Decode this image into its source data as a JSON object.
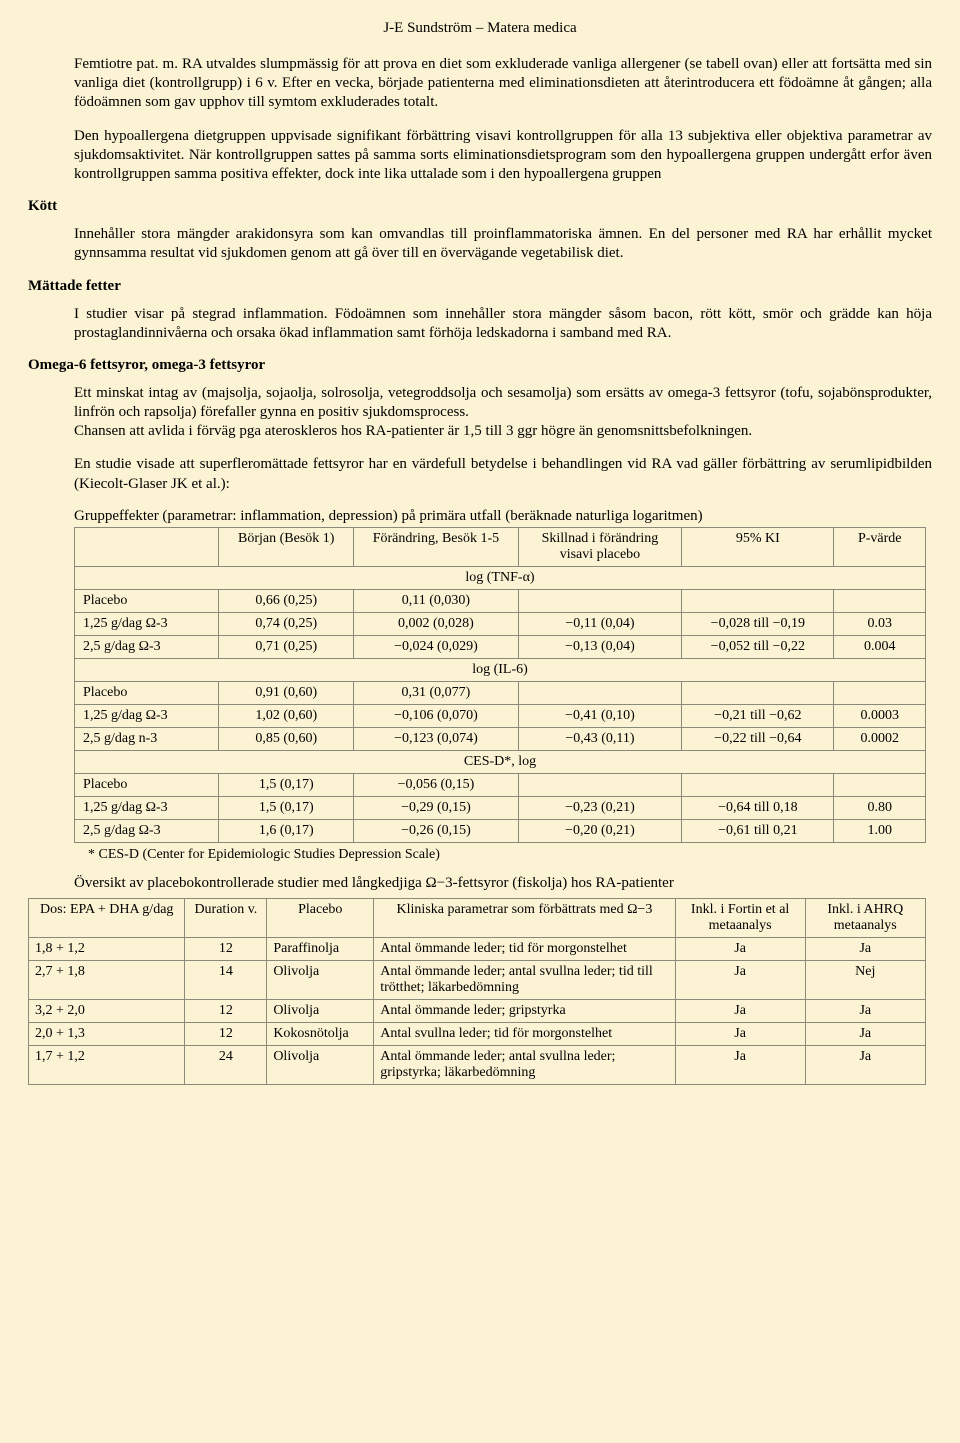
{
  "header": "J-E Sundström – Matera medica",
  "intro": {
    "p1": "Femtiotre pat. m. RA utvaldes slumpmässig för att prova en diet som exkluderade vanliga allergener (se tabell ovan) eller att fortsätta med sin vanliga diet (kontrollgrupp) i 6 v. Efter en vecka, började patienterna med eliminationsdieten att återintroducera ett födoämne åt gången; alla födoämnen som gav upphov till symtom exkluderades totalt.",
    "p2": "Den hypoallergena dietgruppen uppvisade signifikant förbättring visavi kontrollgruppen för alla 13 subjektiva eller objektiva parametrar av sjukdomsaktivitet. När kontrollgruppen sattes på samma sorts eliminations­dietsprogram som den hypoallergena gruppen undergått erfor även kontrollgruppen samma positiva effekter, dock inte lika uttalade som i den hypoallergena gruppen"
  },
  "kott": {
    "heading": "Kött",
    "p1": "Innehåller stora mängder arakidonsyra som kan omvandlas till proinflammatoriska ämnen. En del personer med RA har erhållit mycket gynnsamma resultat vid sjukdomen genom att gå över till en övervägande vegetabilisk diet."
  },
  "mattade": {
    "heading": "Mättade fetter",
    "p1": "I studier visar på stegrad inflammation. Födoämnen som innehåller stora mängder såsom bacon, rött kött, smör och grädde kan höja prostaglandinnivåerna och orsaka ökad inflammation samt förhöja ledskadorna i samband med RA."
  },
  "omega": {
    "heading": "Omega-6 fettsyror, omega-3 fettsyror",
    "p1": "Ett minskat intag av (majsolja, sojaolja, solrosolja, vetegroddsolja och sesamolja) som ersätts av omega-3 fettsyror (tofu, sojabönsprodukter, linfrön och rapsolja) förefaller gynna en positiv sjukdomsprocess.",
    "p2": "Chansen att avlida i förväg pga ateroskleros hos RA-patienter är 1,5 till 3 ggr högre än genomsnitts­befolkningen.",
    "p3": "En studie visade att superfleromättade fettsyror har en värdefull betydelse i behandlingen vid RA vad gäller förbättring av serumlipidbilden (Kiecolt-Glaser JK et al.):"
  },
  "table1": {
    "caption": "Gruppeffekter (parametrar: inflammation, depression) på primära utfall (beräknade naturliga logaritmen)",
    "headers": [
      "",
      "Början (Besök 1)",
      "Förändring, Besök 1-5",
      "Skillnad i förändring visavi placebo",
      "95% KI",
      "P-värde"
    ],
    "sections": [
      {
        "title": "log (TNF-α)",
        "rows": [
          [
            "Placebo",
            "0,66 (0,25)",
            "0,11 (0,030)",
            "",
            "",
            ""
          ],
          [
            "1,25 g/dag Ω-3",
            "0,74 (0,25)",
            "0,002 (0,028)",
            "−0,11 (0,04)",
            "−0,028 till −0,19",
            "0.03"
          ],
          [
            "2,5 g/dag Ω-3",
            "0,71 (0,25)",
            "−0,024 (0,029)",
            "−0,13 (0,04)",
            "−0,052 till −0,22",
            "0.004"
          ]
        ]
      },
      {
        "title": "log (IL-6)",
        "rows": [
          [
            "Placebo",
            "0,91 (0,60)",
            "0,31 (0,077)",
            "",
            "",
            ""
          ],
          [
            "1,25 g/dag Ω-3",
            "1,02 (0,60)",
            "−0,106 (0,070)",
            "−0,41 (0,10)",
            "−0,21 till −0,62",
            "0.0003"
          ],
          [
            "2,5 g/dag n-3",
            "0,85 (0,60)",
            "−0,123 (0,074)",
            "−0,43 (0,11)",
            "−0,22 till −0,64",
            "0.0002"
          ]
        ]
      },
      {
        "title": "CES-D*, log",
        "rows": [
          [
            "Placebo",
            "1,5 (0,17)",
            "−0,056 (0,15)",
            "",
            "",
            ""
          ],
          [
            "1,25 g/dag Ω-3",
            "1,5 (0,17)",
            "−0,29 (0,15)",
            "−0,23 (0,21)",
            "−0,64 till 0,18",
            "0.80"
          ],
          [
            "2,5 g/dag Ω-3",
            "1,6 (0,17)",
            "−0,26 (0,15)",
            "−0,20 (0,21)",
            "−0,61 till 0,21",
            "1.00"
          ]
        ]
      }
    ],
    "footnote": "* CES-D (Center for Epidemiologic Studies Depression Scale)"
  },
  "table2": {
    "caption": "Översikt av placebokontrollerade studier med långkedjiga Ω−3-fettsyror (fiskolja) hos RA-patienter",
    "headers": [
      "Dos: EPA + DHA g/dag",
      "Duration v.",
      "Placebo",
      "Kliniska parametrar som förbättrats med Ω−3",
      "Inkl. i Fortin et al metaanalys",
      "Inkl. i AHRQ metaanalys"
    ],
    "rows": [
      [
        "1,8 + 1,2",
        "12",
        "Paraffinolja",
        "Antal ömmande leder; tid för morgon­stelhet",
        "Ja",
        "Ja"
      ],
      [
        "2,7 + 1,8",
        "14",
        "Olivolja",
        "Antal ömmande leder; antal svullna leder; tid till trötthet; läkarbedömning",
        "Ja",
        "Nej"
      ],
      [
        "3,2 + 2,0",
        "12",
        "Olivolja",
        "Antal ömmande leder; gripstyrka",
        "Ja",
        "Ja"
      ],
      [
        "2,0 + 1,3",
        "12",
        "Kokosnötolja",
        "Antal svullna leder; tid för morgonstelhet",
        "Ja",
        "Ja"
      ],
      [
        "1,7 + 1,2",
        "24",
        "Olivolja",
        "Antal ömmande leder; antal svullna leder; gripstyrka; läkarbedömning",
        "Ja",
        "Ja"
      ]
    ]
  }
}
